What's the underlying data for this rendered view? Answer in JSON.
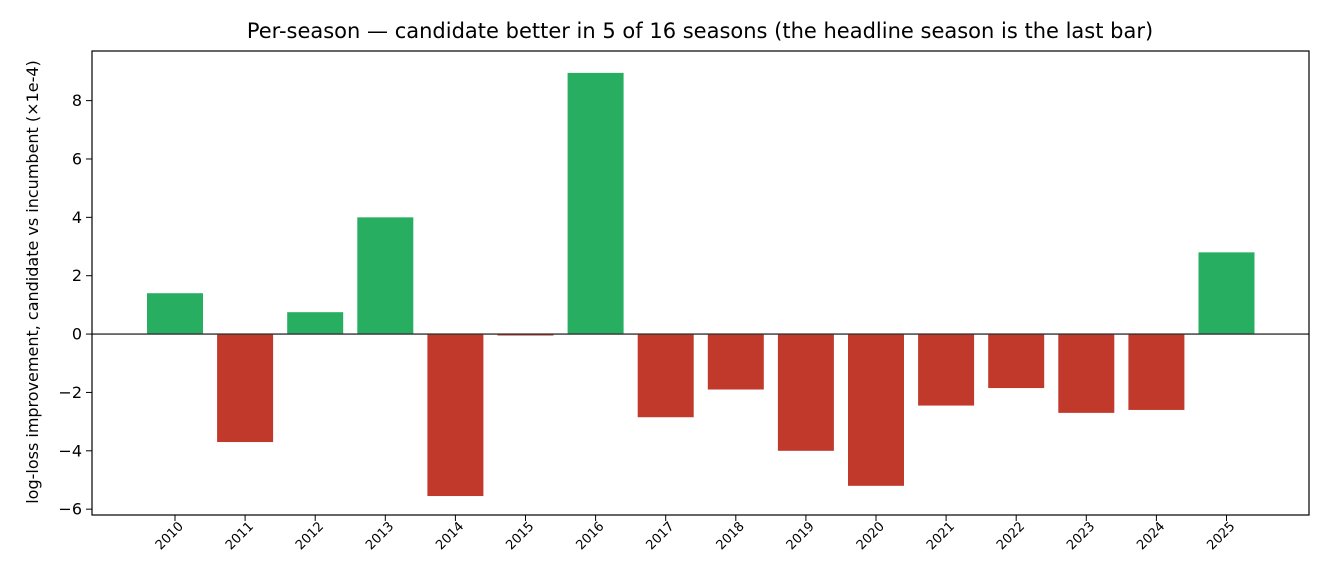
{
  "chart_data": {
    "type": "bar",
    "title": "Per-season — candidate better in 5 of 16 seasons (the headline season is the last bar)",
    "xlabel": "",
    "ylabel": "log-loss improvement, candidate vs incumbent (×1e-4)",
    "categories": [
      "2010",
      "2011",
      "2012",
      "2013",
      "2014",
      "2015",
      "2016",
      "2017",
      "2018",
      "2019",
      "2020",
      "2021",
      "2022",
      "2023",
      "2024",
      "2025"
    ],
    "values": [
      1.4,
      -3.7,
      0.75,
      4.0,
      -5.55,
      -0.05,
      8.95,
      -2.85,
      -1.9,
      -4.0,
      -5.2,
      -2.45,
      -1.85,
      -2.7,
      -2.6,
      2.8
    ],
    "ylim": [
      -6.2,
      9.7
    ],
    "yticks": [
      "8",
      "6",
      "4",
      "2",
      "0",
      "−2",
      "−4",
      "−6"
    ],
    "ytick_values": [
      8,
      6,
      4,
      2,
      0,
      -2,
      -4,
      -6
    ],
    "grid": false,
    "colors": {
      "positive": "#27ae60",
      "negative": "#c0392b",
      "zero_line": "#333333",
      "axis": "#000000"
    }
  }
}
